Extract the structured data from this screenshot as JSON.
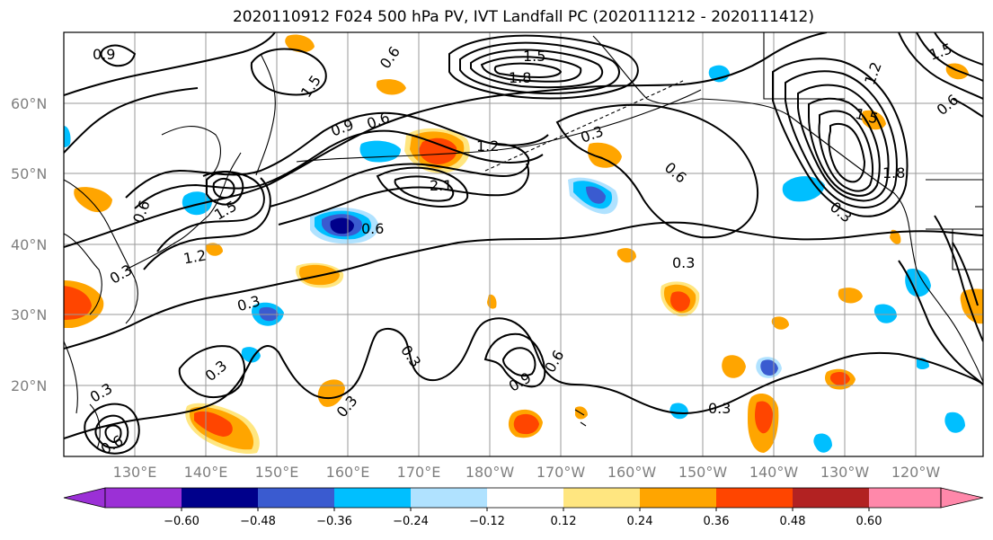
{
  "title": "2020110912 F024 500 hPa PV, IVT Landfall PC (2020111212 - 2020111412)",
  "latitude_labels": [
    "60°N",
    "50°N",
    "40°N",
    "30°N",
    "20°N"
  ],
  "longitude_labels": [
    "130°E",
    "140°E",
    "150°E",
    "160°E",
    "170°E",
    "180°W",
    "170°W",
    "160°W",
    "150°W",
    "140°W",
    "130°W",
    "120°W"
  ],
  "colorbar": {
    "tick_labels": [
      "-0.60",
      "-0.48",
      "-0.36",
      "-0.24",
      "-0.12",
      "0.12",
      "0.24",
      "0.36",
      "0.48",
      "0.60"
    ],
    "colors": [
      "#9b30d6",
      "#00008b",
      "#3a5bd0",
      "#00bfff",
      "#b0e2ff",
      "#ffffff",
      "#ffe680",
      "#ffa500",
      "#ff4500",
      "#b22222",
      "#ff88aa"
    ]
  },
  "contour_labels": [
    "0.9",
    "0.6",
    "1.5",
    "1.8",
    "1.5",
    "0.9",
    "0.6",
    "0.3",
    "1.2",
    "2.1",
    "1.5",
    "0.6",
    "1.2",
    "0.3",
    "0.3",
    "0.3",
    "0.3",
    "0.9",
    "0.6",
    "0.3",
    "0.3",
    "0.3",
    "0.6",
    "1.2",
    "1.5",
    "1.8",
    "1.5",
    "0.6",
    "0.3",
    "0.3",
    "0.6",
    "0.6"
  ]
}
